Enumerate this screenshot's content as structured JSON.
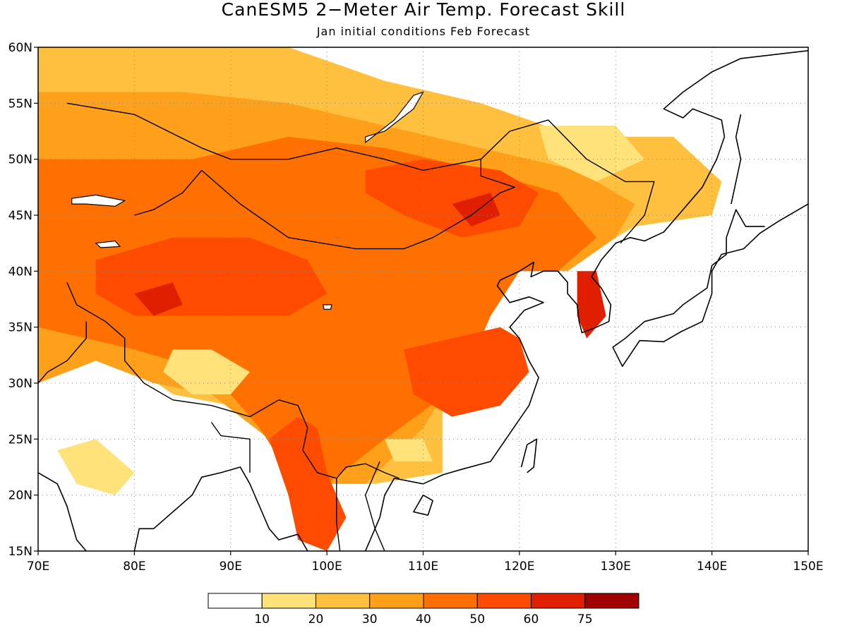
{
  "title": "CanESM5 2−Meter Air Temp. Forecast Skill",
  "subtitle": "Jan initial conditions  Feb Forecast",
  "map": {
    "lon_range": [
      70,
      150
    ],
    "lat_range": [
      15,
      60
    ],
    "lon_ticks": [
      {
        "value": 70,
        "label": "70E"
      },
      {
        "value": 80,
        "label": "80E"
      },
      {
        "value": 90,
        "label": "90E"
      },
      {
        "value": 100,
        "label": "100E"
      },
      {
        "value": 110,
        "label": "110E"
      },
      {
        "value": 120,
        "label": "120E"
      },
      {
        "value": 130,
        "label": "130E"
      },
      {
        "value": 140,
        "label": "140E"
      },
      {
        "value": 150,
        "label": "150E"
      }
    ],
    "lat_ticks": [
      {
        "value": 15,
        "label": "15N"
      },
      {
        "value": 20,
        "label": "20N"
      },
      {
        "value": 25,
        "label": "25N"
      },
      {
        "value": 30,
        "label": "30N"
      },
      {
        "value": 35,
        "label": "35N"
      },
      {
        "value": 40,
        "label": "40N"
      },
      {
        "value": 45,
        "label": "45N"
      },
      {
        "value": 50,
        "label": "50N"
      },
      {
        "value": 55,
        "label": "55N"
      },
      {
        "value": 60,
        "label": "60N"
      }
    ],
    "grid": "dotted"
  },
  "colorbar": {
    "colors": [
      "#ffffff",
      "#ffe27a",
      "#ffc040",
      "#ffa01a",
      "#ff7000",
      "#ff4b00",
      "#e01e00",
      "#a00000"
    ],
    "labels": [
      "10",
      "20",
      "30",
      "40",
      "50",
      "60",
      "75"
    ]
  },
  "skill_regions": [
    {
      "name": "north-band",
      "level": 20,
      "poly": [
        [
          70,
          60
        ],
        [
          96,
          60
        ],
        [
          106,
          57
        ],
        [
          116,
          55
        ],
        [
          126,
          52
        ],
        [
          136,
          52
        ],
        [
          141,
          48
        ],
        [
          140,
          45
        ],
        [
          132,
          44
        ],
        [
          128,
          42
        ],
        [
          124,
          40
        ],
        [
          120,
          40
        ],
        [
          118,
          38
        ],
        [
          116,
          36
        ],
        [
          112,
          28
        ],
        [
          112,
          22
        ],
        [
          105,
          21
        ],
        [
          98,
          21
        ],
        [
          95,
          25
        ],
        [
          90,
          28
        ],
        [
          84,
          29
        ],
        [
          79,
          32
        ],
        [
          74,
          34
        ],
        [
          70,
          34
        ]
      ]
    },
    {
      "name": "northwest-mid",
      "level": 30,
      "poly": [
        [
          70,
          56
        ],
        [
          85,
          56
        ],
        [
          96,
          55
        ],
        [
          106,
          53
        ],
        [
          116,
          51
        ],
        [
          126,
          49
        ],
        [
          132,
          46
        ],
        [
          130,
          43
        ],
        [
          125,
          40
        ],
        [
          120,
          40
        ],
        [
          117,
          37
        ],
        [
          115,
          33
        ],
        [
          110,
          26
        ],
        [
          104,
          21
        ],
        [
          98,
          21
        ],
        [
          94,
          25
        ],
        [
          88,
          29
        ],
        [
          82,
          30
        ],
        [
          76,
          32
        ],
        [
          70,
          30
        ]
      ]
    },
    {
      "name": "central-asia",
      "level": 40,
      "poly": [
        [
          70,
          50
        ],
        [
          86,
          50
        ],
        [
          96,
          52
        ],
        [
          106,
          51
        ],
        [
          116,
          49
        ],
        [
          124,
          47
        ],
        [
          128,
          43
        ],
        [
          124,
          40
        ],
        [
          120,
          40
        ],
        [
          117,
          36
        ],
        [
          114,
          30
        ],
        [
          106,
          25
        ],
        [
          100,
          21
        ],
        [
          96,
          22
        ],
        [
          93,
          26
        ],
        [
          88,
          31
        ],
        [
          80,
          33
        ],
        [
          70,
          35
        ]
      ]
    },
    {
      "name": "tarim",
      "level": 50,
      "poly": [
        [
          76,
          41
        ],
        [
          84,
          43
        ],
        [
          92,
          43
        ],
        [
          98,
          41
        ],
        [
          100,
          38
        ],
        [
          96,
          36
        ],
        [
          88,
          36
        ],
        [
          80,
          36
        ],
        [
          76,
          38
        ]
      ]
    },
    {
      "name": "mongolia",
      "level": 50,
      "poly": [
        [
          104,
          49
        ],
        [
          110,
          50
        ],
        [
          118,
          49
        ],
        [
          122,
          47
        ],
        [
          120,
          44
        ],
        [
          114,
          43
        ],
        [
          108,
          45
        ],
        [
          104,
          47
        ]
      ]
    },
    {
      "name": "east-china",
      "level": 50,
      "poly": [
        [
          108,
          33
        ],
        [
          113,
          34
        ],
        [
          118,
          35
        ],
        [
          120,
          34
        ],
        [
          121,
          31
        ],
        [
          118,
          28
        ],
        [
          113,
          27
        ],
        [
          109,
          29
        ]
      ]
    },
    {
      "name": "myanmar",
      "level": 50,
      "poly": [
        [
          94,
          25
        ],
        [
          97,
          27
        ],
        [
          99,
          26
        ],
        [
          100,
          22
        ],
        [
          102,
          18
        ],
        [
          100,
          15
        ],
        [
          97,
          16
        ],
        [
          96,
          20
        ]
      ]
    },
    {
      "name": "korea",
      "level": 60,
      "poly": [
        [
          126,
          40
        ],
        [
          128,
          40
        ],
        [
          129,
          36
        ],
        [
          127,
          34
        ],
        [
          126,
          36
        ]
      ]
    },
    {
      "name": "tarim-core",
      "level": 60,
      "poly": [
        [
          80,
          38
        ],
        [
          84,
          39
        ],
        [
          85,
          37
        ],
        [
          82,
          36
        ]
      ]
    },
    {
      "name": "mongolia-core",
      "level": 60,
      "poly": [
        [
          113,
          46
        ],
        [
          117,
          47
        ],
        [
          118,
          45
        ],
        [
          115,
          44
        ]
      ]
    },
    {
      "name": "tibet-gap",
      "level": 10,
      "poly": [
        [
          84,
          33
        ],
        [
          88,
          33
        ],
        [
          92,
          31
        ],
        [
          90,
          29
        ],
        [
          86,
          29
        ],
        [
          83,
          31
        ]
      ]
    },
    {
      "name": "india-gap",
      "level": 10,
      "poly": [
        [
          72,
          24
        ],
        [
          76,
          25
        ],
        [
          80,
          22
        ],
        [
          78,
          20
        ],
        [
          74,
          21
        ]
      ]
    },
    {
      "name": "se-china-gap",
      "level": 10,
      "poly": [
        [
          106,
          25
        ],
        [
          110,
          25
        ],
        [
          111,
          23
        ],
        [
          107,
          23
        ]
      ]
    },
    {
      "name": "manchuria-gap",
      "level": 10,
      "poly": [
        [
          122,
          53
        ],
        [
          130,
          53
        ],
        [
          133,
          50
        ],
        [
          128,
          48
        ],
        [
          123,
          50
        ]
      ]
    }
  ],
  "coastlines": [
    [
      [
        70,
        22
      ],
      [
        72,
        21
      ],
      [
        73,
        19
      ],
      [
        74,
        16
      ],
      [
        75,
        15
      ]
    ],
    [
      [
        80,
        15
      ],
      [
        80.5,
        17
      ],
      [
        82,
        17
      ],
      [
        86,
        20
      ],
      [
        87,
        21.6
      ],
      [
        89,
        22
      ],
      [
        91,
        22.5
      ],
      [
        92,
        21
      ],
      [
        94,
        17
      ],
      [
        95,
        16
      ],
      [
        97,
        16.5
      ],
      [
        98,
        15
      ]
    ],
    [
      [
        104,
        15
      ],
      [
        105.5,
        18
      ],
      [
        106,
        20
      ],
      [
        107,
        21.5
      ],
      [
        110,
        21
      ],
      [
        112,
        21.8
      ],
      [
        114,
        22.3
      ],
      [
        117,
        23
      ],
      [
        119,
        25.5
      ],
      [
        121,
        28
      ],
      [
        122,
        30.5
      ],
      [
        121,
        32
      ],
      [
        120,
        34
      ],
      [
        119,
        35
      ],
      [
        120.5,
        36.5
      ],
      [
        122.5,
        37.2
      ],
      [
        121,
        37.7
      ],
      [
        119,
        37.2
      ],
      [
        117.7,
        38.7
      ],
      [
        118,
        39.2
      ],
      [
        120,
        40
      ],
      [
        121.5,
        40.8
      ],
      [
        121.2,
        39.5
      ],
      [
        122.5,
        40
      ],
      [
        124,
        40
      ],
      [
        125,
        39
      ],
      [
        125,
        38
      ],
      [
        126,
        37
      ],
      [
        126.2,
        35.5
      ],
      [
        126.5,
        34.5
      ],
      [
        128,
        35
      ],
      [
        129.3,
        35.5
      ],
      [
        129.5,
        37
      ],
      [
        128.5,
        38.5
      ],
      [
        127.5,
        39.5
      ],
      [
        128.5,
        41
      ],
      [
        130,
        42.5
      ],
      [
        131.5,
        43
      ],
      [
        133,
        42.7
      ],
      [
        135,
        43.5
      ],
      [
        137,
        45.5
      ],
      [
        139,
        47.5
      ],
      [
        140.5,
        50
      ],
      [
        141.3,
        52
      ],
      [
        141,
        53.5
      ],
      [
        138,
        54.5
      ],
      [
        137,
        53.7
      ],
      [
        135,
        54.5
      ],
      [
        137,
        56
      ],
      [
        140,
        57.8
      ],
      [
        143,
        59
      ],
      [
        148,
        59.5
      ],
      [
        150,
        59.7
      ]
    ],
    [
      [
        150,
        46
      ],
      [
        147,
        44.5
      ],
      [
        145,
        43.4
      ],
      [
        143.3,
        42
      ],
      [
        141,
        41.5
      ],
      [
        140,
        40
      ],
      [
        140,
        38
      ],
      [
        139,
        35.5
      ],
      [
        136.8,
        34.6
      ],
      [
        135,
        33.7
      ],
      [
        132.5,
        33.8
      ],
      [
        130.7,
        31.5
      ],
      [
        129.7,
        33.2
      ],
      [
        131,
        34
      ],
      [
        133,
        35.5
      ],
      [
        136,
        36.2
      ],
      [
        137,
        37
      ],
      [
        139.5,
        38.5
      ],
      [
        140,
        40.5
      ],
      [
        141.5,
        41.5
      ],
      [
        141.5,
        43
      ],
      [
        142.5,
        45.5
      ],
      [
        143.5,
        44
      ],
      [
        145.5,
        44
      ]
    ],
    [
      [
        142,
        46
      ],
      [
        142.5,
        48
      ],
      [
        143,
        50
      ],
      [
        142.5,
        52
      ],
      [
        143,
        54
      ]
    ],
    [
      [
        120.2,
        22.5
      ],
      [
        120.8,
        24.5
      ],
      [
        121.8,
        25
      ],
      [
        121.5,
        22.5
      ],
      [
        120.8,
        22
      ]
    ],
    [
      [
        110,
        20
      ],
      [
        109,
        18.5
      ],
      [
        110.5,
        18.2
      ],
      [
        111,
        19.5
      ],
      [
        110,
        20
      ]
    ]
  ],
  "borders": [
    [
      [
        73,
        55
      ],
      [
        80,
        54
      ],
      [
        87,
        51
      ],
      [
        90,
        50
      ],
      [
        96,
        50
      ],
      [
        101,
        51
      ],
      [
        106,
        50
      ],
      [
        110,
        49
      ],
      [
        116,
        50
      ],
      [
        119,
        52.5
      ],
      [
        123,
        53.5
      ],
      [
        127,
        50
      ],
      [
        131,
        48
      ],
      [
        134,
        48
      ],
      [
        133,
        45
      ],
      [
        131,
        43
      ],
      [
        130.5,
        42.5
      ]
    ],
    [
      [
        87,
        49
      ],
      [
        91,
        46
      ],
      [
        96,
        43
      ],
      [
        103,
        42
      ],
      [
        108,
        42
      ],
      [
        111,
        43
      ],
      [
        115,
        45
      ],
      [
        118,
        47
      ],
      [
        119.5,
        47.5
      ],
      [
        116,
        48.5
      ],
      [
        116,
        50
      ]
    ],
    [
      [
        73,
        39
      ],
      [
        74,
        37
      ],
      [
        77,
        35.5
      ],
      [
        79,
        34
      ],
      [
        79,
        32
      ],
      [
        81,
        30
      ],
      [
        84,
        28.5
      ],
      [
        88,
        28
      ],
      [
        92,
        27
      ],
      [
        95,
        28.5
      ],
      [
        97,
        28
      ],
      [
        98,
        26
      ],
      [
        97.5,
        24
      ],
      [
        99,
        22
      ],
      [
        101,
        21.5
      ],
      [
        102,
        22.5
      ],
      [
        104,
        22.8
      ],
      [
        106,
        22
      ],
      [
        107.5,
        21.5
      ]
    ],
    [
      [
        88,
        26.5
      ],
      [
        89,
        25.3
      ],
      [
        92,
        25
      ],
      [
        92,
        22
      ]
    ],
    [
      [
        70,
        30
      ],
      [
        71,
        31
      ],
      [
        73,
        32
      ],
      [
        75,
        34
      ],
      [
        75,
        35.5
      ]
    ],
    [
      [
        80,
        45
      ],
      [
        82,
        45.5
      ],
      [
        85,
        47
      ],
      [
        87,
        49
      ]
    ],
    [
      [
        101,
        21.5
      ],
      [
        101,
        17.5
      ],
      [
        101.5,
        14
      ]
    ],
    [
      [
        105.5,
        23
      ],
      [
        104,
        20
      ],
      [
        105,
        17
      ],
      [
        106.5,
        14
      ]
    ]
  ],
  "water_bodies": [
    {
      "name": "baikal",
      "poly": [
        [
          104,
          52
        ],
        [
          106,
          52.5
        ],
        [
          109,
          54.5
        ],
        [
          110,
          56
        ],
        [
          109,
          55.7
        ],
        [
          107,
          53.5
        ],
        [
          104,
          51.5
        ]
      ]
    },
    {
      "name": "balkhash",
      "poly": [
        [
          73.5,
          46.5
        ],
        [
          76,
          46.8
        ],
        [
          79,
          46.3
        ],
        [
          78,
          45.8
        ],
        [
          75,
          46
        ],
        [
          73.5,
          46
        ]
      ]
    },
    {
      "name": "issyk-kul",
      "poly": [
        [
          76,
          42.5
        ],
        [
          78,
          42.7
        ],
        [
          78.5,
          42.2
        ],
        [
          76.5,
          42.1
        ]
      ]
    },
    {
      "name": "qinghai",
      "poly": [
        [
          99.6,
          37
        ],
        [
          100.5,
          37
        ],
        [
          100.4,
          36.6
        ],
        [
          99.7,
          36.6
        ]
      ]
    }
  ]
}
